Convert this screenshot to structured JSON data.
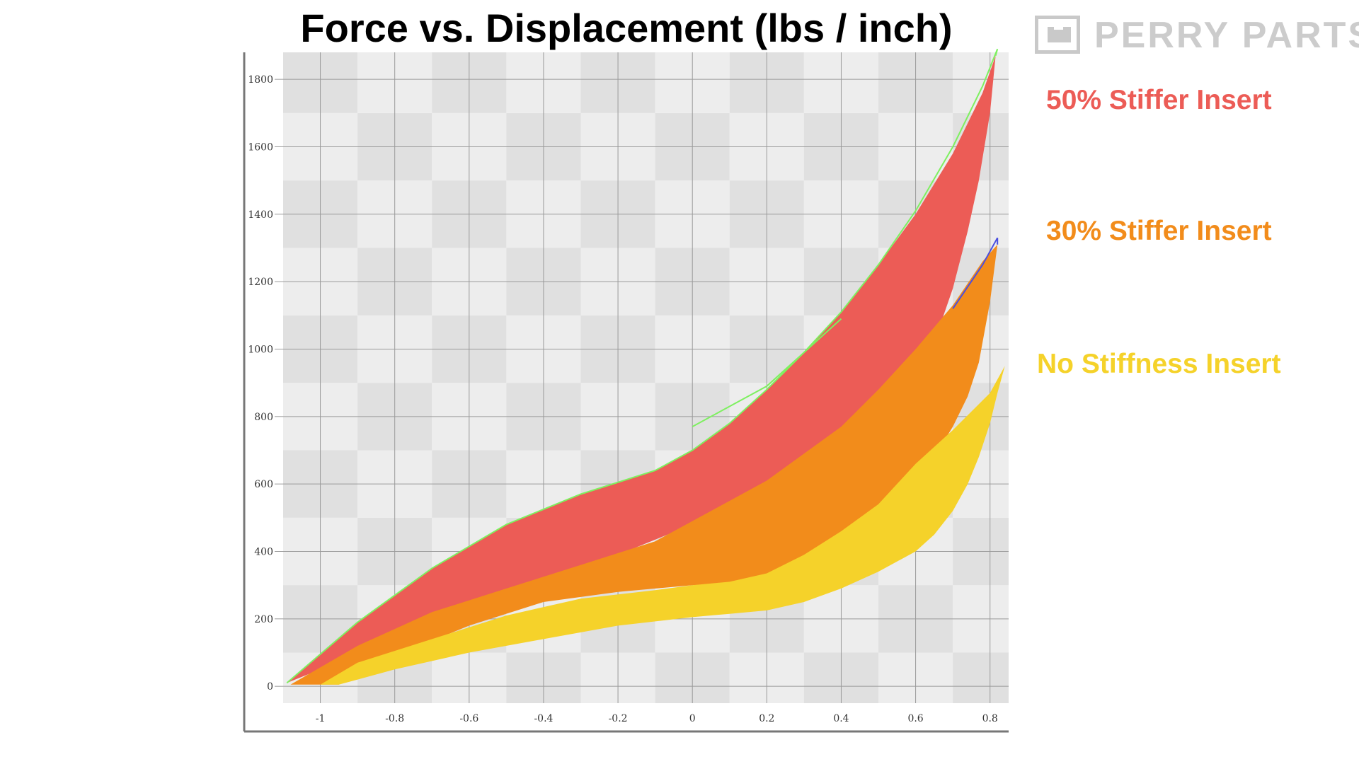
{
  "title": "Force vs. Displacement (lbs / inch)",
  "logo": {
    "text": "PERRY PARTS",
    "color": "#cccccc"
  },
  "legend": [
    {
      "label": "50% Stiffer Insert",
      "color": "#ec5c56"
    },
    {
      "label": "30% Stiffer Insert",
      "color": "#f28c1b"
    },
    {
      "label": "No Stiffness Insert",
      "color": "#f5d22a"
    }
  ],
  "chart_data": {
    "type": "area",
    "xlabel": "",
    "ylabel": "",
    "xlim": [
      -1.1,
      0.85
    ],
    "ylim": [
      -50,
      1880
    ],
    "x_ticks": [
      "-1",
      "-0.8",
      "-0.6",
      "-0.4",
      "-0.2",
      "0",
      "0.2",
      "0.4",
      "0.6",
      "0.8"
    ],
    "y_ticks": [
      "0",
      "200",
      "400",
      "600",
      "800",
      "1000",
      "1200",
      "1400",
      "1600",
      "1800"
    ],
    "grid": true,
    "legend_position": "right",
    "series": [
      {
        "name": "50% Stiffer Insert",
        "color": "#ec5c56",
        "upper": [
          [
            -1.09,
            10
          ],
          [
            -0.9,
            190
          ],
          [
            -0.7,
            350
          ],
          [
            -0.5,
            480
          ],
          [
            -0.3,
            570
          ],
          [
            -0.1,
            640
          ],
          [
            0.0,
            700
          ],
          [
            0.1,
            780
          ],
          [
            0.2,
            880
          ],
          [
            0.3,
            990
          ],
          [
            0.4,
            1110
          ],
          [
            0.5,
            1250
          ],
          [
            0.6,
            1400
          ],
          [
            0.7,
            1580
          ],
          [
            0.78,
            1760
          ],
          [
            0.815,
            1870
          ]
        ],
        "lower": [
          [
            0.815,
            1870
          ],
          [
            0.8,
            1700
          ],
          [
            0.77,
            1500
          ],
          [
            0.74,
            1350
          ],
          [
            0.7,
            1180
          ],
          [
            0.65,
            1020
          ],
          [
            0.6,
            950
          ],
          [
            0.5,
            820
          ],
          [
            0.4,
            720
          ],
          [
            0.3,
            640
          ],
          [
            0.2,
            580
          ],
          [
            0.1,
            530
          ],
          [
            0.0,
            480
          ],
          [
            -0.2,
            390
          ],
          [
            -0.4,
            310
          ],
          [
            -0.6,
            220
          ],
          [
            -0.8,
            130
          ],
          [
            -1.0,
            50
          ],
          [
            -1.09,
            10
          ]
        ]
      },
      {
        "name": "30% Stiffer Insert",
        "color": "#f28c1b",
        "upper": [
          [
            -1.08,
            5
          ],
          [
            -0.9,
            120
          ],
          [
            -0.7,
            220
          ],
          [
            -0.5,
            290
          ],
          [
            -0.3,
            360
          ],
          [
            -0.1,
            430
          ],
          [
            0.0,
            490
          ],
          [
            0.1,
            550
          ],
          [
            0.2,
            610
          ],
          [
            0.3,
            690
          ],
          [
            0.4,
            770
          ],
          [
            0.5,
            880
          ],
          [
            0.6,
            1000
          ],
          [
            0.7,
            1130
          ],
          [
            0.78,
            1260
          ],
          [
            0.82,
            1310
          ]
        ],
        "lower": [
          [
            0.82,
            1310
          ],
          [
            0.8,
            1140
          ],
          [
            0.77,
            960
          ],
          [
            0.74,
            860
          ],
          [
            0.7,
            770
          ],
          [
            0.65,
            680
          ],
          [
            0.6,
            600
          ],
          [
            0.5,
            480
          ],
          [
            0.4,
            400
          ],
          [
            0.3,
            350
          ],
          [
            0.2,
            320
          ],
          [
            0.1,
            305
          ],
          [
            0.0,
            300
          ],
          [
            -0.2,
            280
          ],
          [
            -0.4,
            250
          ],
          [
            -0.6,
            180
          ],
          [
            -0.8,
            90
          ],
          [
            -0.95,
            5
          ],
          [
            -1.15,
            5
          ]
        ]
      },
      {
        "name": "No Stiffness Insert",
        "color": "#f5d22a",
        "upper": [
          [
            -1.0,
            5
          ],
          [
            -0.9,
            70
          ],
          [
            -0.7,
            140
          ],
          [
            -0.5,
            210
          ],
          [
            -0.3,
            260
          ],
          [
            -0.1,
            285
          ],
          [
            0.0,
            300
          ],
          [
            0.1,
            310
          ],
          [
            0.2,
            335
          ],
          [
            0.3,
            390
          ],
          [
            0.4,
            460
          ],
          [
            0.5,
            540
          ],
          [
            0.6,
            660
          ],
          [
            0.7,
            760
          ],
          [
            0.8,
            870
          ],
          [
            0.84,
            950
          ]
        ],
        "lower": [
          [
            0.84,
            950
          ],
          [
            0.82,
            870
          ],
          [
            0.8,
            780
          ],
          [
            0.77,
            680
          ],
          [
            0.74,
            600
          ],
          [
            0.7,
            520
          ],
          [
            0.65,
            450
          ],
          [
            0.6,
            400
          ],
          [
            0.5,
            340
          ],
          [
            0.4,
            290
          ],
          [
            0.3,
            250
          ],
          [
            0.2,
            225
          ],
          [
            0.1,
            215
          ],
          [
            0.0,
            205
          ],
          [
            -0.2,
            180
          ],
          [
            -0.4,
            140
          ],
          [
            -0.6,
            100
          ],
          [
            -0.8,
            50
          ],
          [
            -0.95,
            5
          ],
          [
            -1.0,
            5
          ]
        ]
      }
    ],
    "outlines": [
      {
        "color": "#7ef060",
        "points": [
          [
            -1.09,
            10
          ],
          [
            -0.9,
            190
          ],
          [
            -0.7,
            350
          ],
          [
            -0.5,
            480
          ],
          [
            -0.3,
            570
          ],
          [
            -0.1,
            640
          ],
          [
            0.0,
            700
          ],
          [
            0.1,
            780
          ],
          [
            0.2,
            880
          ],
          [
            0.3,
            990
          ],
          [
            0.4,
            1110
          ],
          [
            0.5,
            1250
          ],
          [
            0.6,
            1410
          ],
          [
            0.7,
            1600
          ],
          [
            0.78,
            1780
          ],
          [
            0.82,
            1890
          ],
          [
            0.815,
            1870
          ]
        ]
      },
      {
        "color": "#7ef060",
        "points": [
          [
            0.0,
            770
          ],
          [
            0.2,
            890
          ],
          [
            0.4,
            1090
          ]
        ]
      },
      {
        "color": "#4b4fe0",
        "points": [
          [
            0.7,
            1120
          ],
          [
            0.78,
            1250
          ],
          [
            0.82,
            1330
          ],
          [
            0.82,
            1310
          ]
        ]
      }
    ]
  }
}
